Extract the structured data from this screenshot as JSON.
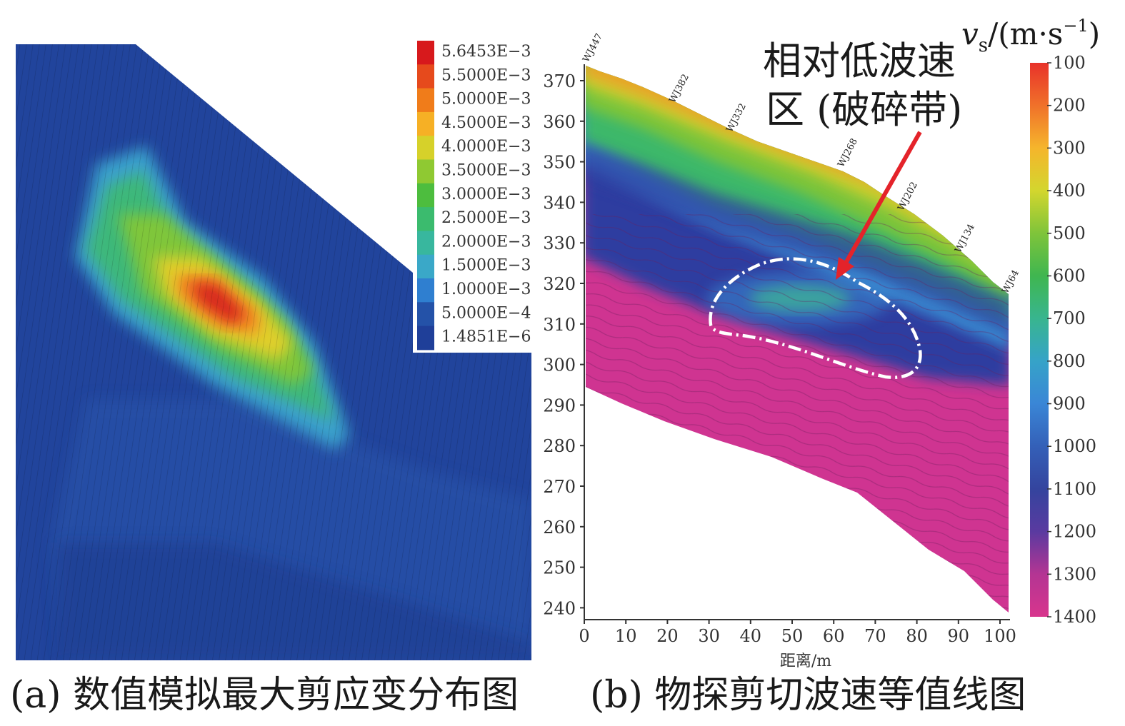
{
  "panel_a": {
    "caption": "(a) 数值模拟最大剪应变分布图",
    "legend": [
      {
        "label": "5.6453E−3",
        "color": "#d7191c"
      },
      {
        "label": "5.5000E−3",
        "color": "#e64a1c"
      },
      {
        "label": "5.0000E−3",
        "color": "#f07c1a"
      },
      {
        "label": "4.5000E−3",
        "color": "#f6b025"
      },
      {
        "label": "4.0000E−3",
        "color": "#d6d12a"
      },
      {
        "label": "3.5000E−3",
        "color": "#8fc932"
      },
      {
        "label": "3.0000E−3",
        "color": "#4dbd3e"
      },
      {
        "label": "2.5000E−3",
        "color": "#3bbb6e"
      },
      {
        "label": "2.0000E−3",
        "color": "#38b79e"
      },
      {
        "label": "1.5000E−3",
        "color": "#3aa8c8"
      },
      {
        "label": "1.0000E−3",
        "color": "#2f7fd0"
      },
      {
        "label": "5.0000E−4",
        "color": "#2452a8"
      },
      {
        "label": "1.4851E−6",
        "color": "#1f3f99"
      }
    ]
  },
  "panel_b": {
    "caption": "(b) 物探剪切波速等值线图",
    "annotation_line1": "相对低波速",
    "annotation_line2": "区 (破碎带)",
    "colorbar_title_main": "v",
    "colorbar_title_sub": "s",
    "colorbar_title_unit": "/(m·s",
    "colorbar_title_sup": "−1",
    "colorbar_title_close": ")",
    "colorbar_ticks": [
      "100",
      "200",
      "300",
      "400",
      "500",
      "600",
      "700",
      "800",
      "900",
      "1000",
      "1100",
      "1200",
      "1300",
      "1400"
    ],
    "colorbar_colors": [
      "#e8322a",
      "#f0712a",
      "#f5b52c",
      "#d3d62e",
      "#7fc43a",
      "#3fb650",
      "#38b58f",
      "#36a3c8",
      "#3a86d6",
      "#3460b8",
      "#34449e",
      "#5a3aa0",
      "#b43593",
      "#d8358d"
    ],
    "y_ticks": [
      "370",
      "360",
      "350",
      "340",
      "330",
      "320",
      "310",
      "300",
      "290",
      "280",
      "270",
      "260",
      "250",
      "240"
    ],
    "x_ticks": [
      "0",
      "10",
      "20",
      "30",
      "40",
      "50",
      "60",
      "70",
      "80",
      "90",
      "100"
    ],
    "xlabel": "距离/m",
    "stations": [
      "WJ447",
      "WJ382",
      "WJ332",
      "WJ268",
      "WJ202",
      "WJ134",
      "WJ64"
    ]
  }
}
